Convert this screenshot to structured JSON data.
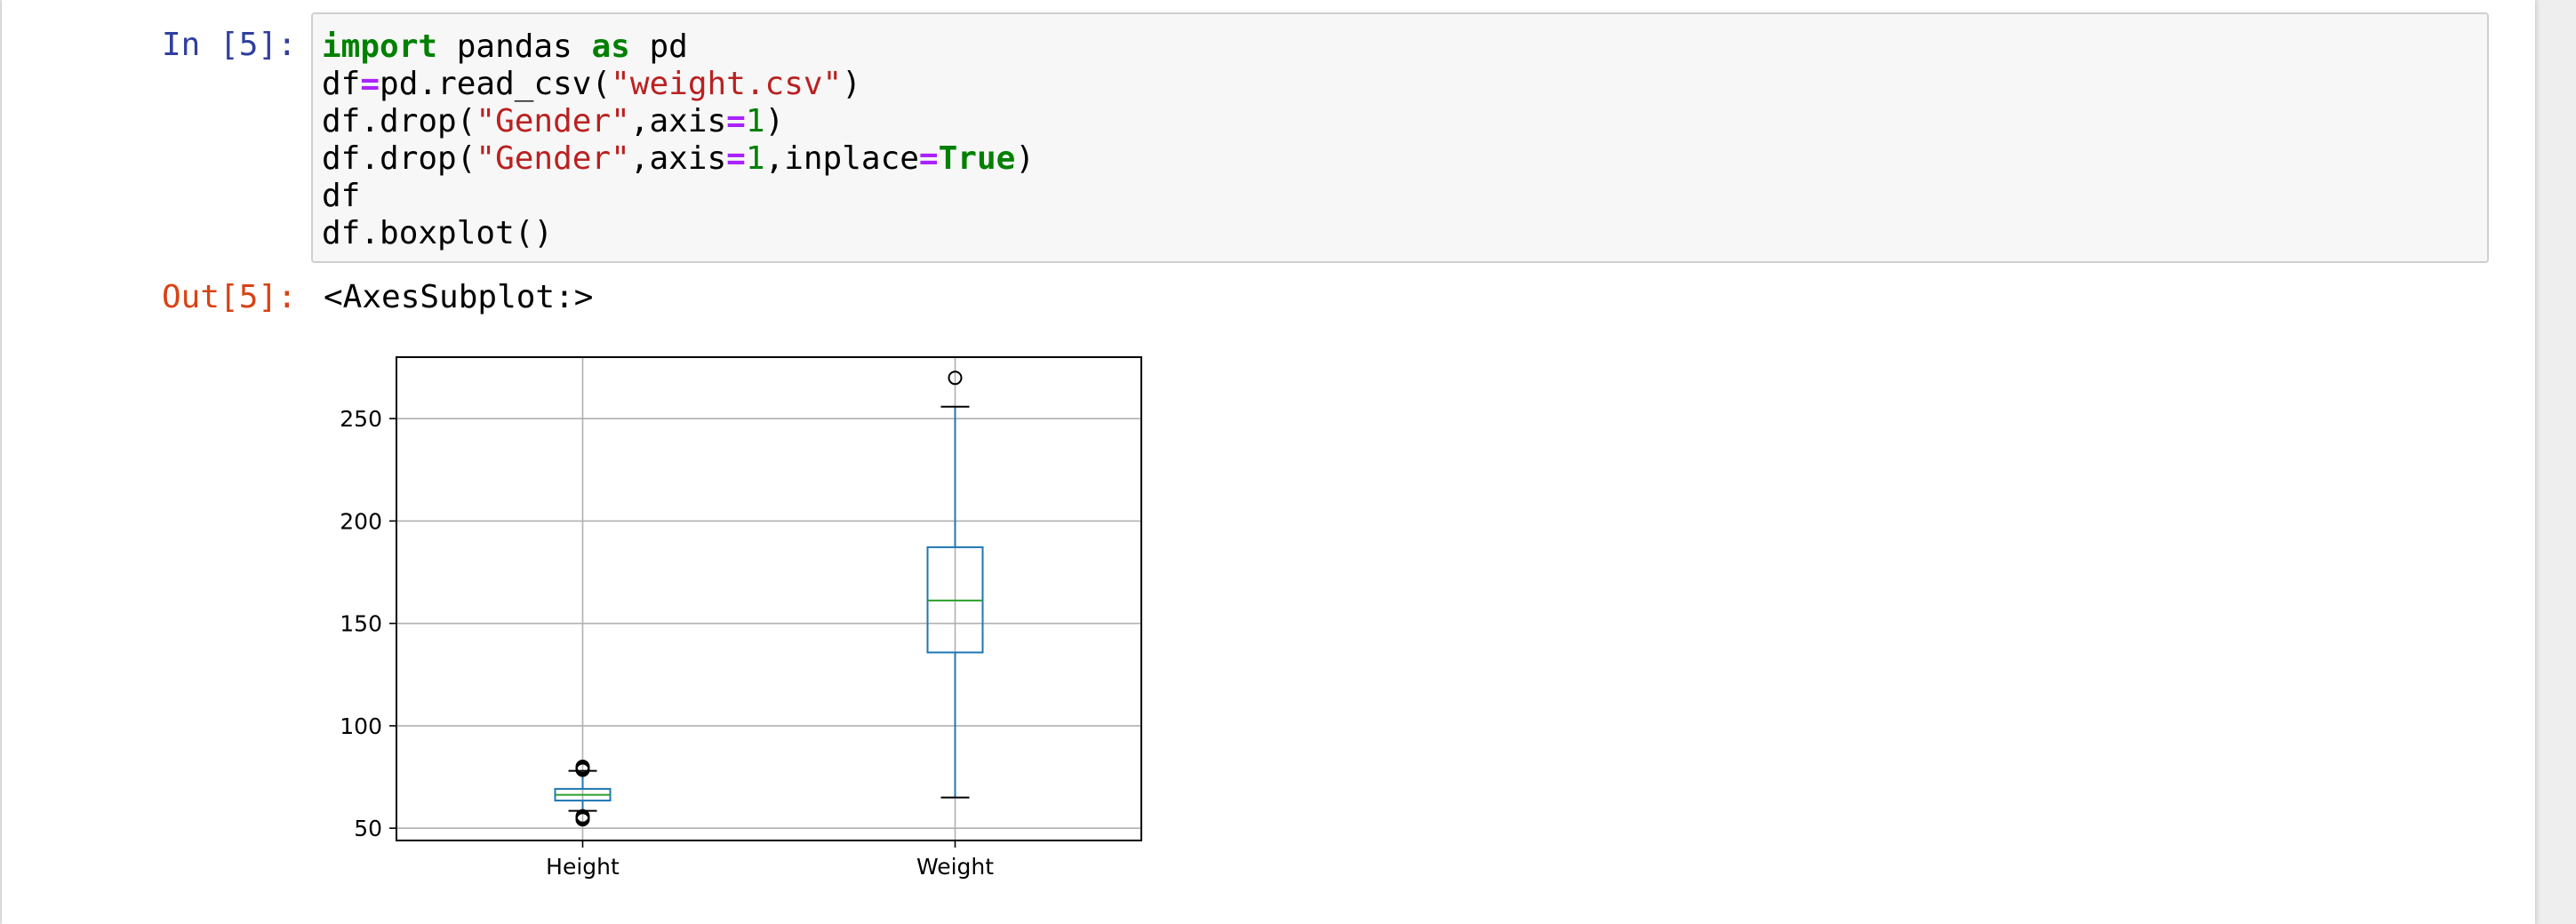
{
  "cell": {
    "in_prompt": "In [5]:",
    "out_prompt": "Out[5]:",
    "code_lines": [
      [
        {
          "t": "import",
          "c": "kw"
        },
        {
          "t": " pandas ",
          "c": ""
        },
        {
          "t": "as",
          "c": "kw"
        },
        {
          "t": " pd",
          "c": ""
        }
      ],
      [
        {
          "t": "df",
          "c": ""
        },
        {
          "t": "=",
          "c": "op"
        },
        {
          "t": "pd.read_csv(",
          "c": ""
        },
        {
          "t": "\"weight.csv\"",
          "c": "str"
        },
        {
          "t": ")",
          "c": ""
        }
      ],
      [
        {
          "t": "df.drop(",
          "c": ""
        },
        {
          "t": "\"Gender\"",
          "c": "str"
        },
        {
          "t": ",axis",
          "c": ""
        },
        {
          "t": "=",
          "c": "op"
        },
        {
          "t": "1",
          "c": "num"
        },
        {
          "t": ")",
          "c": ""
        }
      ],
      [
        {
          "t": "df.drop(",
          "c": ""
        },
        {
          "t": "\"Gender\"",
          "c": "str"
        },
        {
          "t": ",axis",
          "c": ""
        },
        {
          "t": "=",
          "c": "op"
        },
        {
          "t": "1",
          "c": "num"
        },
        {
          "t": ",inplace",
          "c": ""
        },
        {
          "t": "=",
          "c": "op"
        },
        {
          "t": "True",
          "c": "kw"
        },
        {
          "t": ")",
          "c": ""
        }
      ],
      [
        {
          "t": "df",
          "c": ""
        }
      ],
      [
        {
          "t": "df.boxplot()",
          "c": ""
        }
      ]
    ],
    "output_text": "<AxesSubplot:>"
  },
  "colors": {
    "in_prompt": "#303f9f",
    "out_prompt": "#d84315",
    "box": "#1f77b4",
    "median": "#2ca02c",
    "grid": "#b0b0b0"
  },
  "chart_data": {
    "type": "boxplot",
    "title": "",
    "xlabel": "",
    "ylabel": "",
    "categories": [
      "Height",
      "Weight"
    ],
    "ylim": [
      44,
      280
    ],
    "yticks": [
      50,
      100,
      150,
      200,
      250
    ],
    "grid": true,
    "boxes": [
      {
        "name": "Height",
        "whisker_low": 58.5,
        "q1": 63.5,
        "median": 66.3,
        "q3": 69.2,
        "whisker_high": 78.0,
        "outliers": [
          54.3,
          55.0,
          55.8,
          78.5,
          79.2,
          80.0
        ]
      },
      {
        "name": "Weight",
        "whisker_low": 65.0,
        "q1": 135.8,
        "median": 161.2,
        "q3": 187.2,
        "whisker_high": 255.8,
        "outliers": [
          269.9
        ]
      }
    ]
  }
}
